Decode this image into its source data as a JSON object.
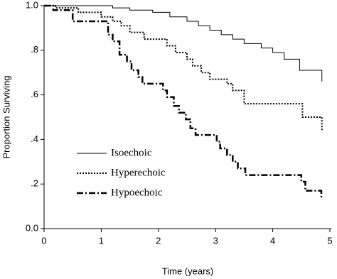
{
  "chart_data": {
    "type": "step",
    "xlabel": "Time (years)",
    "ylabel": "Proportion Surviving",
    "xlim": [
      0,
      5
    ],
    "ylim": [
      0,
      1
    ],
    "xticks": [
      0,
      1,
      2,
      3,
      4,
      5
    ],
    "yticks": [
      {
        "value": 0,
        "label": "0.0"
      },
      {
        "value": 0.2,
        "label": ".2"
      },
      {
        "value": 0.4,
        "label": ".4"
      },
      {
        "value": 0.6,
        "label": ".6"
      },
      {
        "value": 0.8,
        "label": ".8"
      },
      {
        "value": 1,
        "label": "1.0"
      }
    ],
    "series": [
      {
        "name": "Isoechoic",
        "color": "#000000",
        "style": "solid",
        "width": 1,
        "x": [
          0,
          1.2,
          1.5,
          1.9,
          2.2,
          2.5,
          2.7,
          2.9,
          3.1,
          3.3,
          3.5,
          3.8,
          4.0,
          4.2,
          4.47,
          4.86
        ],
        "values": [
          1.0,
          0.99,
          0.98,
          0.97,
          0.95,
          0.93,
          0.91,
          0.89,
          0.87,
          0.85,
          0.83,
          0.81,
          0.79,
          0.76,
          0.71,
          0.66
        ]
      },
      {
        "name": "Hyperechoic",
        "color": "#000000",
        "style": "dotted",
        "width": 2,
        "x": [
          0,
          0.2,
          0.6,
          1.0,
          1.2,
          1.35,
          1.5,
          1.75,
          2.15,
          2.3,
          2.5,
          2.6,
          2.75,
          2.9,
          3.2,
          3.3,
          3.5,
          4.52,
          4.86
        ],
        "values": [
          1.0,
          0.99,
          0.97,
          0.95,
          0.93,
          0.91,
          0.88,
          0.85,
          0.82,
          0.79,
          0.76,
          0.73,
          0.7,
          0.67,
          0.65,
          0.62,
          0.56,
          0.5,
          0.44
        ]
      },
      {
        "name": "Hypoechoic",
        "color": "#000000",
        "style": "dashdot",
        "width": 2.5,
        "x": [
          0,
          0.16,
          0.5,
          1.12,
          1.2,
          1.32,
          1.45,
          1.53,
          1.65,
          1.72,
          2.08,
          2.15,
          2.27,
          2.36,
          2.48,
          2.56,
          2.65,
          3.02,
          3.08,
          3.2,
          3.3,
          3.39,
          3.52,
          4.5,
          4.57,
          4.85
        ],
        "values": [
          1.0,
          0.98,
          0.93,
          0.87,
          0.84,
          0.78,
          0.75,
          0.71,
          0.68,
          0.65,
          0.62,
          0.59,
          0.55,
          0.52,
          0.49,
          0.45,
          0.42,
          0.39,
          0.36,
          0.33,
          0.3,
          0.27,
          0.24,
          0.21,
          0.17,
          0.13
        ]
      }
    ]
  }
}
